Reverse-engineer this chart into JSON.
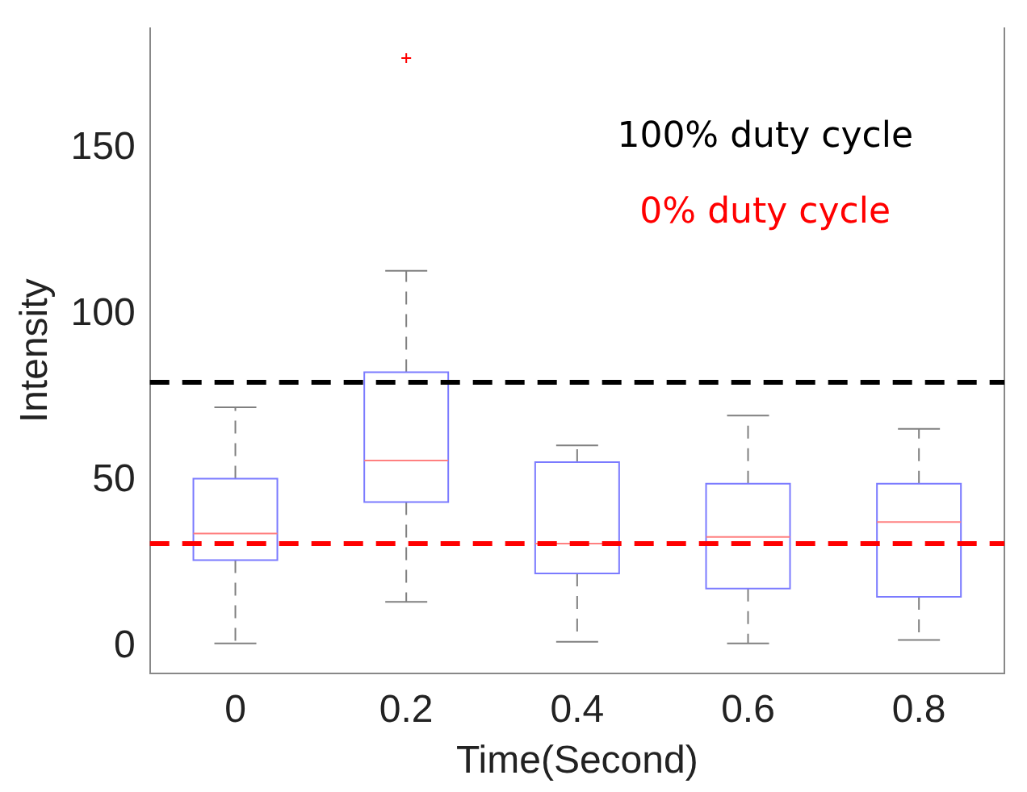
{
  "chart_data": {
    "type": "box",
    "xlabel": "Time(Second)",
    "ylabel": "Intensity",
    "categories": [
      "0",
      "0.2",
      "0.4",
      "0.6",
      "0.8"
    ],
    "series": [
      {
        "color": "#7b7bff",
        "boxes": [
          {
            "low": 1,
            "q1": 26,
            "median": 34,
            "q3": 50.5,
            "high": 72
          },
          {
            "low": 13.5,
            "q1": 43.5,
            "median": 56,
            "q3": 82.5,
            "high": 113,
            "outliers": [
              177
            ]
          },
          {
            "low": 1.5,
            "q1": 22,
            "median": 31,
            "q3": 55.5,
            "high": 60.5
          },
          {
            "low": 1,
            "q1": 17.5,
            "median": 33,
            "q3": 49,
            "high": 69.5
          },
          {
            "low": 2,
            "q1": 15,
            "median": 37.5,
            "q3": 49,
            "high": 65.5
          }
        ]
      }
    ],
    "ylim": [
      -8,
      186
    ],
    "yticks": [
      0,
      50,
      100,
      150
    ],
    "ref_lines": [
      {
        "axis": "y",
        "value": 79.5,
        "label": "100% duty cycle",
        "color": "#000000",
        "line_style": "dashed"
      },
      {
        "axis": "y",
        "value": 31,
        "label": "0% duty cycle",
        "color": "#ff0000",
        "line_style": "dashed"
      }
    ],
    "grid": false,
    "legend": false
  }
}
